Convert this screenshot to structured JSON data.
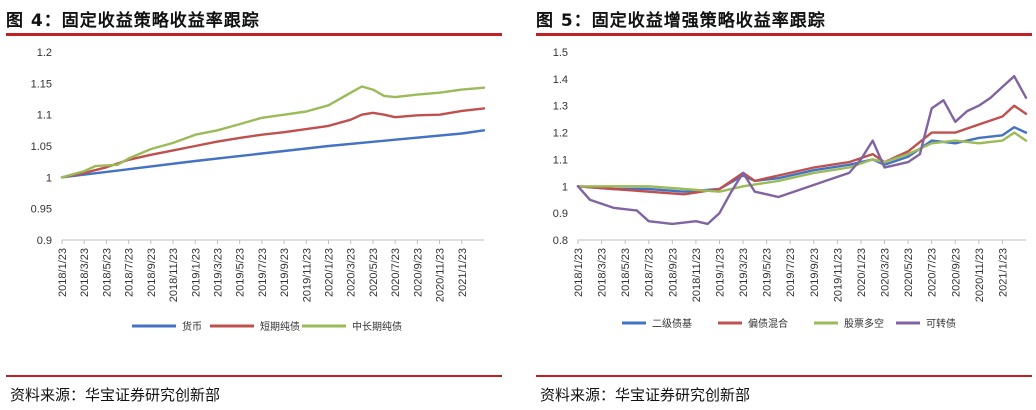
{
  "figures": [
    {
      "title": "图 4：固定收益策略收益率跟踪",
      "source": "资料来源：华宝证券研究创新部"
    },
    {
      "title": "图 5：固定收益增强策略收益率跟踪",
      "source": "资料来源：华宝证券研究创新部"
    }
  ],
  "chart_data": [
    {
      "type": "line",
      "title": "",
      "xlabel": "",
      "ylabel": "",
      "ylim": [
        0.9,
        1.2
      ],
      "yticks": [
        "0.9",
        "0.95",
        "1",
        "1.05",
        "1.1",
        "1.15",
        "1.2"
      ],
      "x_range": [
        "2018/1/23",
        "2021/3/23"
      ],
      "xticks": [
        "2018/1/23",
        "2018/3/23",
        "2018/5/23",
        "2018/7/23",
        "2018/9/23",
        "2018/11/23",
        "2019/1/23",
        "2019/3/23",
        "2019/5/23",
        "2019/7/23",
        "2019/9/23",
        "2019/11/23",
        "2020/1/23",
        "2020/3/23",
        "2020/5/23",
        "2020/7/23",
        "2020/9/23",
        "2020/11/23",
        "2021/1/23"
      ],
      "grid": false,
      "legend_position": "bottom",
      "series": [
        {
          "name": "货币",
          "color": "#4472C4",
          "x": [
            "2018/1/23",
            "2018/7/23",
            "2019/1/23",
            "2019/7/23",
            "2020/1/23",
            "2020/7/23",
            "2021/1/23",
            "2021/3/23"
          ],
          "values": [
            1.0,
            1.013,
            1.026,
            1.038,
            1.05,
            1.06,
            1.07,
            1.075
          ]
        },
        {
          "name": "短期纯债",
          "color": "#C0504D",
          "x": [
            "2018/1/23",
            "2018/3/23",
            "2018/5/23",
            "2018/7/23",
            "2018/9/23",
            "2018/11/23",
            "2019/1/23",
            "2019/3/23",
            "2019/5/23",
            "2019/7/23",
            "2019/9/23",
            "2019/11/23",
            "2020/1/23",
            "2020/3/23",
            "2020/4/23",
            "2020/5/23",
            "2020/6/23",
            "2020/7/23",
            "2020/9/23",
            "2020/11/23",
            "2021/1/23",
            "2021/3/23"
          ],
          "values": [
            1.0,
            1.007,
            1.016,
            1.028,
            1.036,
            1.043,
            1.05,
            1.057,
            1.063,
            1.068,
            1.072,
            1.077,
            1.082,
            1.092,
            1.1,
            1.103,
            1.1,
            1.096,
            1.099,
            1.1,
            1.106,
            1.11
          ]
        },
        {
          "name": "中长期纯债",
          "color": "#9BBB59",
          "x": [
            "2018/1/23",
            "2018/3/23",
            "2018/4/23",
            "2018/6/23",
            "2018/7/23",
            "2018/9/23",
            "2018/11/23",
            "2019/1/23",
            "2019/3/23",
            "2019/5/23",
            "2019/7/23",
            "2019/9/23",
            "2019/11/23",
            "2020/1/23",
            "2020/3/23",
            "2020/4/23",
            "2020/5/23",
            "2020/6/23",
            "2020/7/23",
            "2020/9/23",
            "2020/11/23",
            "2021/1/23",
            "2021/3/23"
          ],
          "values": [
            1.0,
            1.01,
            1.018,
            1.02,
            1.03,
            1.045,
            1.055,
            1.068,
            1.075,
            1.085,
            1.095,
            1.1,
            1.105,
            1.115,
            1.135,
            1.145,
            1.14,
            1.13,
            1.128,
            1.132,
            1.135,
            1.14,
            1.143
          ]
        }
      ]
    },
    {
      "type": "line",
      "title": "",
      "xlabel": "",
      "ylabel": "",
      "ylim": [
        0.8,
        1.5
      ],
      "yticks": [
        "0.8",
        "0.9",
        "1",
        "1.1",
        "1.2",
        "1.3",
        "1.4",
        "1.5"
      ],
      "x_range": [
        "2018/1/23",
        "2021/3/23"
      ],
      "xticks": [
        "2018/1/23",
        "2018/3/23",
        "2018/5/23",
        "2018/7/23",
        "2018/9/23",
        "2018/11/23",
        "2019/1/23",
        "2019/3/23",
        "2019/5/23",
        "2019/7/23",
        "2019/9/23",
        "2019/11/23",
        "2020/1/23",
        "2020/3/23",
        "2020/5/23",
        "2020/7/23",
        "2020/9/23",
        "2020/11/23",
        "2021/1/23"
      ],
      "grid": false,
      "legend_position": "bottom",
      "series": [
        {
          "name": "二级债基",
          "color": "#4472C4",
          "x": [
            "2018/1/23",
            "2018/4/23",
            "2018/7/23",
            "2018/10/23",
            "2019/1/23",
            "2019/3/23",
            "2019/4/23",
            "2019/6/23",
            "2019/9/23",
            "2019/12/23",
            "2020/2/23",
            "2020/3/23",
            "2020/5/23",
            "2020/7/23",
            "2020/9/23",
            "2020/11/23",
            "2021/1/23",
            "2021/2/23",
            "2021/3/23"
          ],
          "values": [
            1.0,
            0.99,
            0.99,
            0.98,
            0.99,
            1.04,
            1.02,
            1.03,
            1.06,
            1.08,
            1.1,
            1.08,
            1.11,
            1.17,
            1.16,
            1.18,
            1.19,
            1.22,
            1.2
          ]
        },
        {
          "name": "偏债混合",
          "color": "#C0504D",
          "x": [
            "2018/1/23",
            "2018/4/23",
            "2018/7/23",
            "2018/10/23",
            "2019/1/23",
            "2019/3/23",
            "2019/4/23",
            "2019/6/23",
            "2019/9/23",
            "2019/12/23",
            "2020/2/23",
            "2020/3/23",
            "2020/5/23",
            "2020/7/23",
            "2020/9/23",
            "2020/11/23",
            "2021/1/23",
            "2021/2/23",
            "2021/3/23"
          ],
          "values": [
            1.0,
            0.99,
            0.98,
            0.97,
            0.99,
            1.05,
            1.02,
            1.04,
            1.07,
            1.09,
            1.12,
            1.09,
            1.13,
            1.2,
            1.2,
            1.23,
            1.26,
            1.3,
            1.27
          ]
        },
        {
          "name": "股票多空",
          "color": "#9BBB59",
          "x": [
            "2018/1/23",
            "2018/4/23",
            "2018/7/23",
            "2018/10/23",
            "2019/1/23",
            "2019/3/23",
            "2019/6/23",
            "2019/9/23",
            "2019/12/23",
            "2020/2/23",
            "2020/3/23",
            "2020/5/23",
            "2020/7/23",
            "2020/9/23",
            "2020/11/23",
            "2021/1/23",
            "2021/2/23",
            "2021/3/23"
          ],
          "values": [
            1.0,
            1.0,
            1.0,
            0.99,
            0.98,
            1.0,
            1.02,
            1.05,
            1.07,
            1.1,
            1.09,
            1.12,
            1.16,
            1.17,
            1.16,
            1.17,
            1.2,
            1.17
          ]
        },
        {
          "name": "可转债",
          "color": "#8064A2",
          "x": [
            "2018/1/23",
            "2018/2/23",
            "2018/4/23",
            "2018/6/23",
            "2018/7/23",
            "2018/9/23",
            "2018/11/23",
            "2018/12/23",
            "2019/1/23",
            "2019/2/23",
            "2019/3/23",
            "2019/4/23",
            "2019/5/23",
            "2019/6/23",
            "2019/8/23",
            "2019/10/23",
            "2019/12/23",
            "2020/1/23",
            "2020/2/23",
            "2020/3/23",
            "2020/5/23",
            "2020/6/23",
            "2020/7/23",
            "2020/8/23",
            "2020/9/23",
            "2020/10/23",
            "2020/11/23",
            "2020/12/23",
            "2021/1/23",
            "2021/2/23",
            "2021/3/23"
          ],
          "values": [
            1.0,
            0.95,
            0.92,
            0.91,
            0.87,
            0.86,
            0.87,
            0.86,
            0.9,
            0.98,
            1.05,
            0.98,
            0.97,
            0.96,
            0.99,
            1.02,
            1.05,
            1.1,
            1.17,
            1.07,
            1.09,
            1.12,
            1.29,
            1.32,
            1.24,
            1.28,
            1.3,
            1.33,
            1.37,
            1.41,
            1.33
          ]
        }
      ]
    }
  ]
}
